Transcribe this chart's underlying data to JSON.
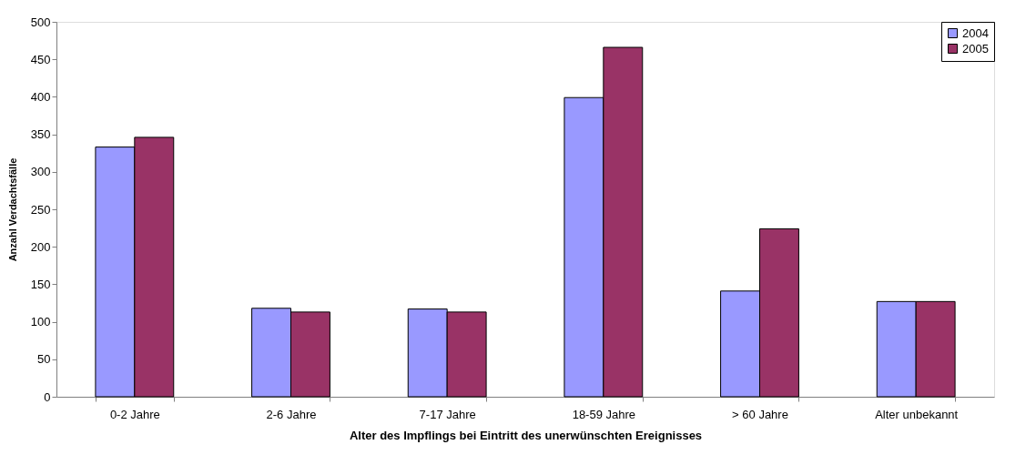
{
  "chart_data": {
    "type": "bar",
    "xlabel": "Alter des Impflings bei Eintritt des unerwünschten Ereignisses",
    "ylabel": "Anzahl Verdachtsfälle",
    "categories": [
      "0-2 Jahre",
      "2-6 Jahre",
      "7-17 Jahre",
      "18-59 Jahre",
      "> 60 Jahre",
      "Alter unbekannt"
    ],
    "series": [
      {
        "name": "2004",
        "color": "#9999ff",
        "values": [
          333,
          118,
          117,
          399,
          141,
          127
        ]
      },
      {
        "name": "2005",
        "color": "#993366",
        "values": [
          346,
          113,
          113,
          466,
          224,
          127
        ]
      }
    ],
    "ylim": [
      0,
      500
    ],
    "yticks": [
      0,
      50,
      100,
      150,
      200,
      250,
      300,
      350,
      400,
      450,
      500
    ],
    "grid": false,
    "legend": "top right"
  }
}
